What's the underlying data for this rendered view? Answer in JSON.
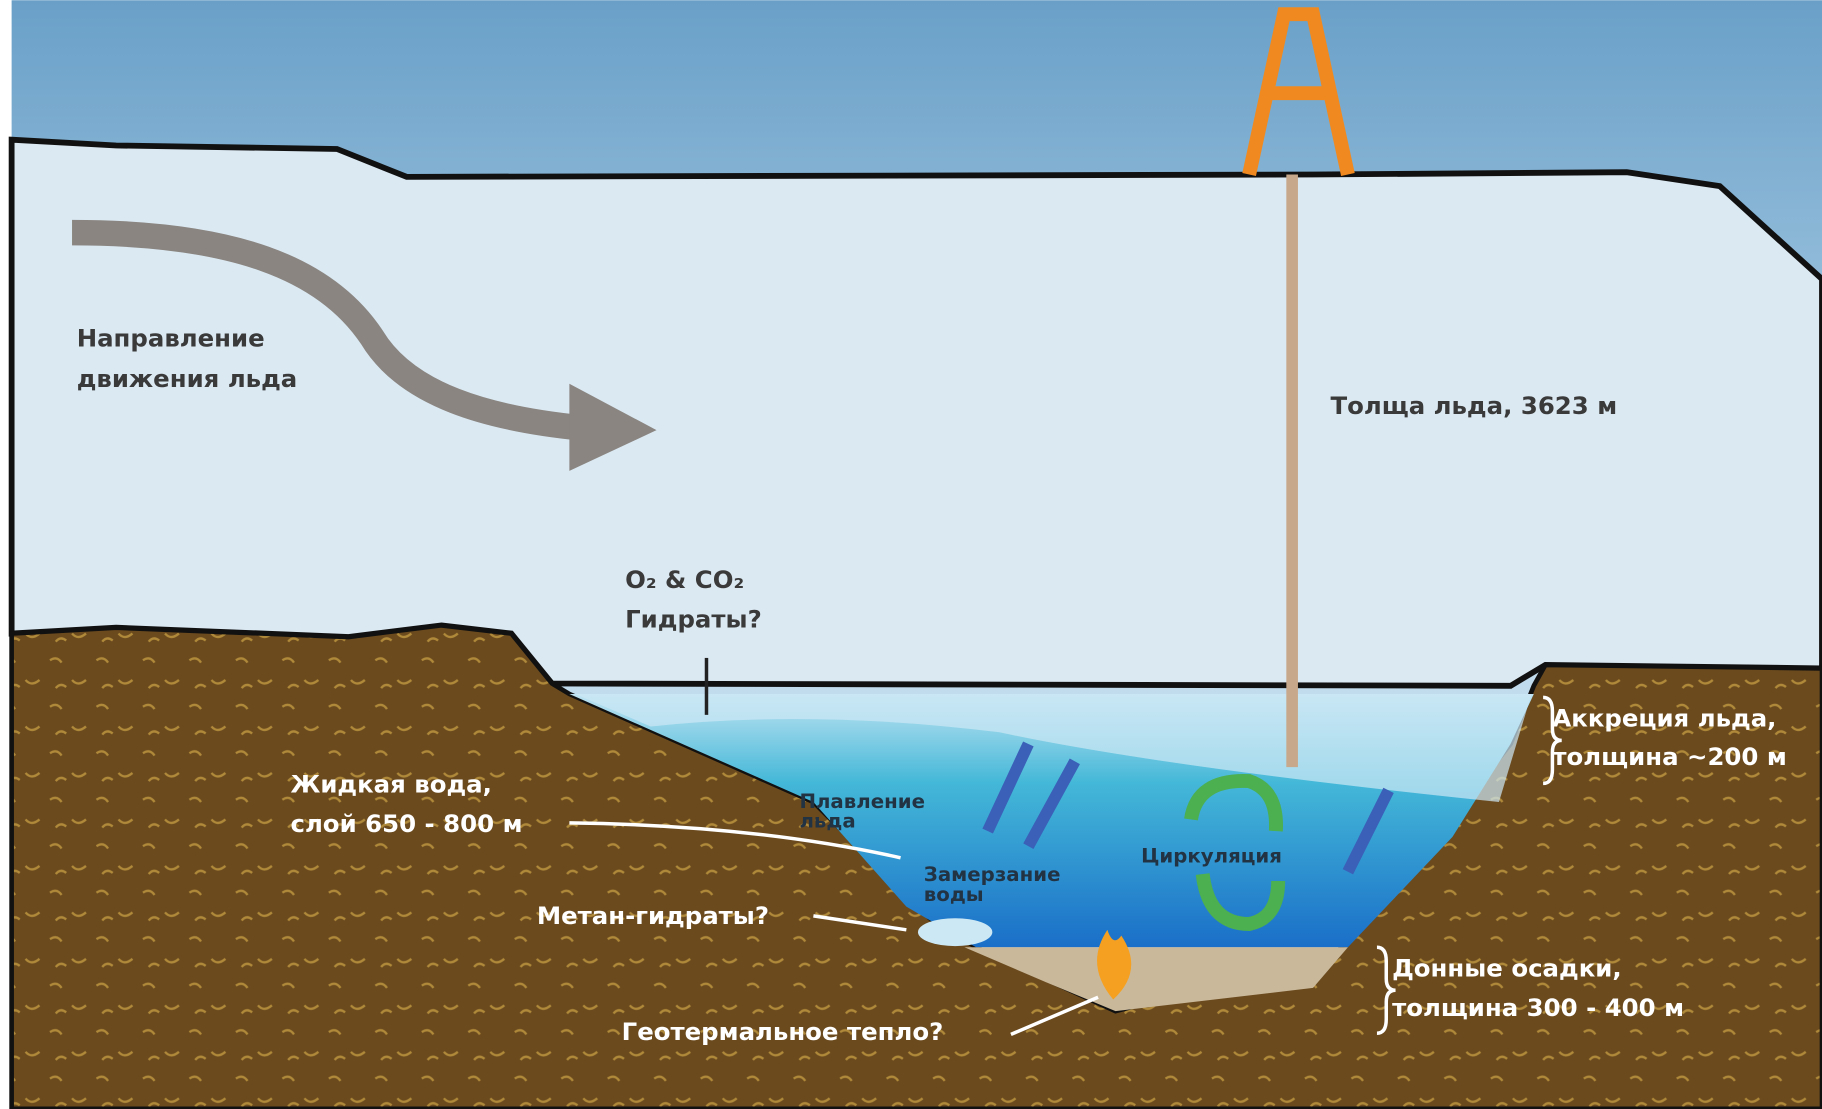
{
  "labels": {
    "ice_flow": [
      "Направление",
      "движения льда"
    ],
    "ice_thickness": "Толща льда, 3623 м",
    "gases": [
      "O₂ & CO₂",
      "Гидраты?"
    ],
    "accretion": [
      "Аккреция льда,",
      "толщина ~200 м"
    ],
    "water": [
      "Жидкая вода,",
      "слой 650 - 800 м"
    ],
    "melting": [
      "Плавление",
      "льда"
    ],
    "freezing": [
      "Замерзание",
      "воды"
    ],
    "circulation": "Циркуляция",
    "methane": "Метан-гидраты?",
    "sediments": [
      "Донные осадки,",
      "толщина 300 - 400 м"
    ],
    "geothermal": "Геотермальное тепло?"
  }
}
